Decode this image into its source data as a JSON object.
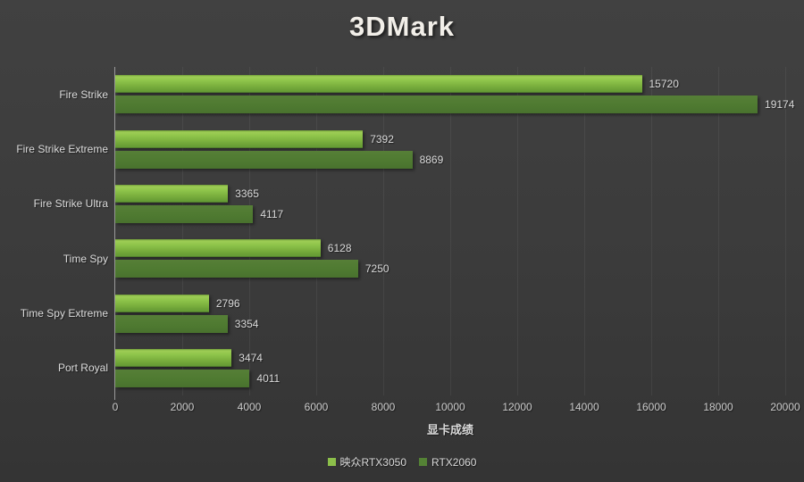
{
  "title": "3DMark",
  "colors": {
    "background": "#3b3b3b",
    "series1": "#8cbf4a",
    "series2": "#548235",
    "text": "#d9d9d9",
    "gridline": "#474747",
    "axis_line": "#9a9a9a"
  },
  "chart_data": {
    "type": "bar",
    "orientation": "horizontal",
    "title": "3DMark",
    "xlabel": "显卡成绩",
    "ylabel": "",
    "categories": [
      "Fire Strike",
      "Fire Strike Extreme",
      "Fire Strike Ultra",
      "Time Spy",
      "Time Spy Extreme",
      "Port Royal"
    ],
    "series": [
      {
        "name": "映众RTX3050",
        "color": "#8cbf4a",
        "values": [
          15720,
          7392,
          3365,
          6128,
          2796,
          3474
        ]
      },
      {
        "name": "RTX2060",
        "color": "#548235",
        "values": [
          19174,
          8869,
          4117,
          7250,
          3354,
          4011
        ]
      }
    ],
    "xlim": [
      0,
      20000
    ],
    "x_ticks": [
      0,
      2000,
      4000,
      6000,
      8000,
      10000,
      12000,
      14000,
      16000,
      18000,
      20000
    ],
    "grid": true,
    "data_labels": true,
    "legend_position": "bottom"
  }
}
